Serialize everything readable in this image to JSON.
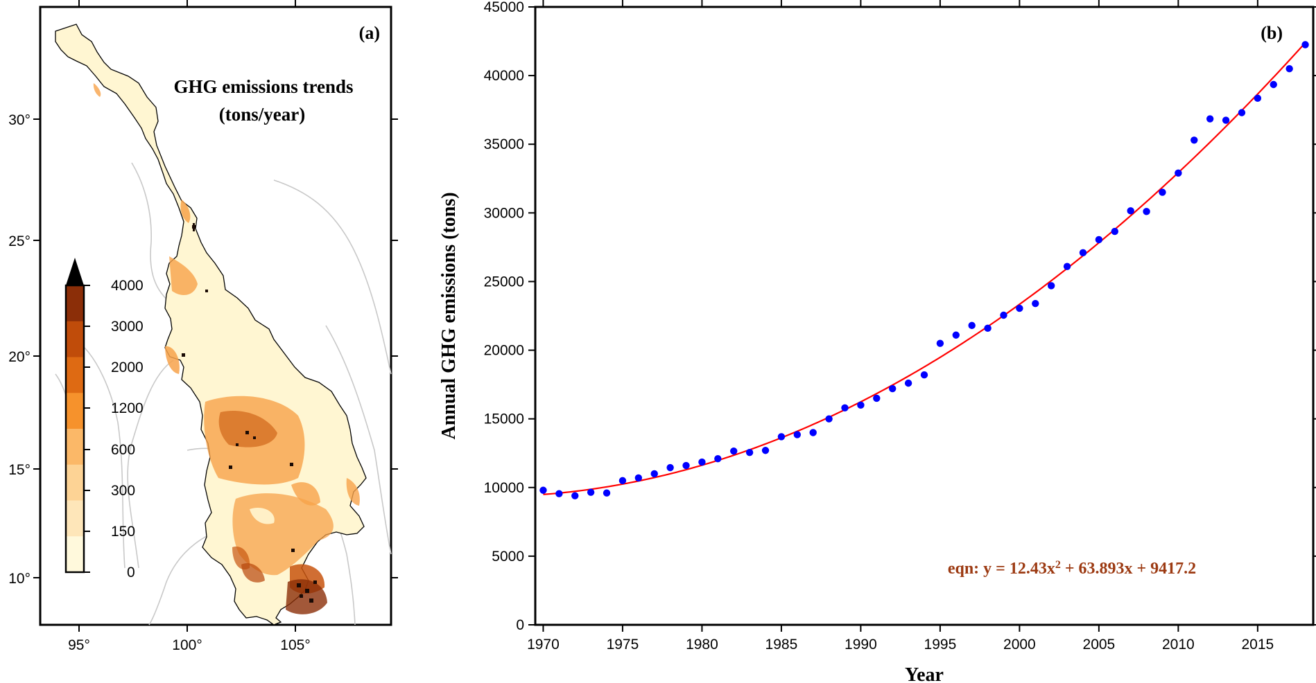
{
  "map_panel": {
    "tag": "(a)",
    "title_line1": "GHG emissions trends",
    "title_line2": "(tons/year)",
    "x_tick_labels": [
      "95°",
      "100°",
      "105°"
    ],
    "y_tick_labels": [
      "30°",
      "25°",
      "20°",
      "15°",
      "10°"
    ],
    "colorbar": {
      "labels": [
        "4000",
        "3000",
        "2000",
        "1200",
        "600",
        "300",
        "150",
        "0"
      ],
      "colors": [
        "#8b2e08",
        "#c04c0a",
        "#de6a13",
        "#f6922c",
        "#fbb868",
        "#fdd395",
        "#fee6b9",
        "#fff9dc"
      ],
      "overflow_color": "#000000"
    },
    "colors": {
      "land_light": "#fff6d2",
      "land_mid": "#f7a24a",
      "land_dark": "#c8550f",
      "hotspot": "#1a0a04",
      "border": "#c8c8c8"
    }
  },
  "chart_data": {
    "type": "scatter",
    "tag": "(b)",
    "title": "",
    "xlabel": "Year",
    "ylabel": "Annual GHG emissions (tons)",
    "xlim": [
      1969.5,
      2018.5
    ],
    "ylim": [
      0,
      45000
    ],
    "x_ticks": [
      1970,
      1975,
      1980,
      1985,
      1990,
      1995,
      2000,
      2005,
      2010,
      2015
    ],
    "y_ticks": [
      0,
      5000,
      10000,
      15000,
      20000,
      25000,
      30000,
      35000,
      40000,
      45000
    ],
    "grid": false,
    "series": [
      {
        "name": "Annual GHG emissions",
        "color": "#0000ff",
        "x": [
          1970,
          1971,
          1972,
          1973,
          1974,
          1975,
          1976,
          1977,
          1978,
          1979,
          1980,
          1981,
          1982,
          1983,
          1984,
          1985,
          1986,
          1987,
          1988,
          1989,
          1990,
          1991,
          1992,
          1993,
          1994,
          1995,
          1996,
          1997,
          1998,
          1999,
          2000,
          2001,
          2002,
          2003,
          2004,
          2005,
          2006,
          2007,
          2008,
          2009,
          2010,
          2011,
          2012,
          2013,
          2014,
          2015,
          2016,
          2017,
          2018
        ],
        "y": [
          9800,
          9550,
          9400,
          9650,
          9600,
          10500,
          10700,
          11000,
          11450,
          11600,
          11850,
          12100,
          12650,
          12550,
          12700,
          13700,
          13850,
          14000,
          15000,
          15800,
          16000,
          16500,
          17200,
          17600,
          18200,
          20500,
          21100,
          21800,
          21600,
          22550,
          23050,
          23400,
          24700,
          26100,
          27100,
          28050,
          28650,
          30150,
          30100,
          31500,
          32900,
          35300,
          36850,
          36750,
          37300,
          38350,
          39350,
          40500,
          42250
        ]
      },
      {
        "name": "Quadratic fit",
        "color": "#ff0000",
        "fit": {
          "a": 12.43,
          "b": 63.893,
          "c": 9417.2,
          "x_origin": 1969
        }
      }
    ],
    "annotation": {
      "prefix": "eqn:  y = 12.43x",
      "superscript": "2",
      "suffix": " + 63.893x + 9417.2",
      "color": "#9c3a12"
    }
  }
}
